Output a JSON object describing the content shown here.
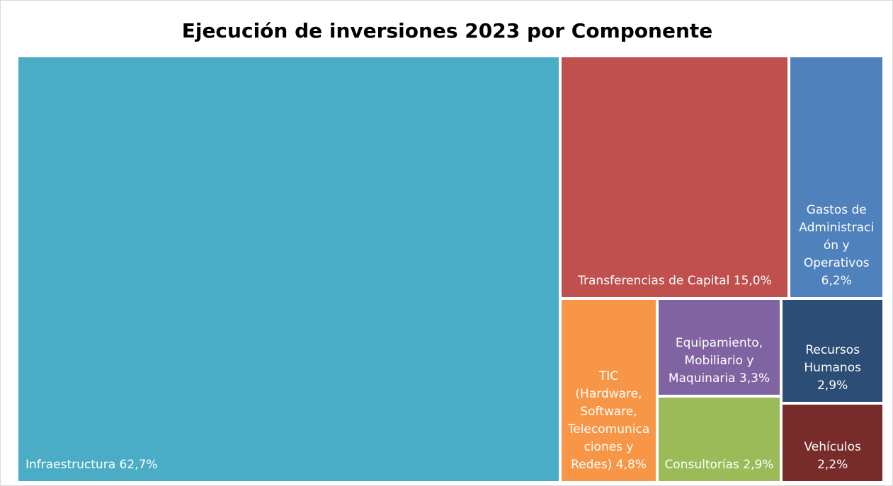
{
  "chart_data": {
    "type": "treemap",
    "title": "Ejecución de inversiones 2023 por Componente",
    "categories": [
      "Infraestructura",
      "Transferencias de Capital",
      "Gastos de Administración y Operativos",
      "TIC (Hardware, Software, Telecomunicaciones y Redes)",
      "Equipamiento, Mobiliario y Maquinaria",
      "Consultorías",
      "Recursos Humanos",
      "Vehículos"
    ],
    "values": [
      62.7,
      15.0,
      6.2,
      4.8,
      3.3,
      2.9,
      2.9,
      2.2
    ],
    "value_labels": [
      "62,7%",
      "15,0%",
      "6,2%",
      "4,8%",
      "3,3%",
      "2,9%",
      "2,9%",
      "2,2%"
    ],
    "colors": [
      "#4bacc6",
      "#c0504d",
      "#4f81bd",
      "#f79646",
      "#8064a2",
      "#9bbb59",
      "#2c4d75",
      "#772c2a"
    ]
  }
}
